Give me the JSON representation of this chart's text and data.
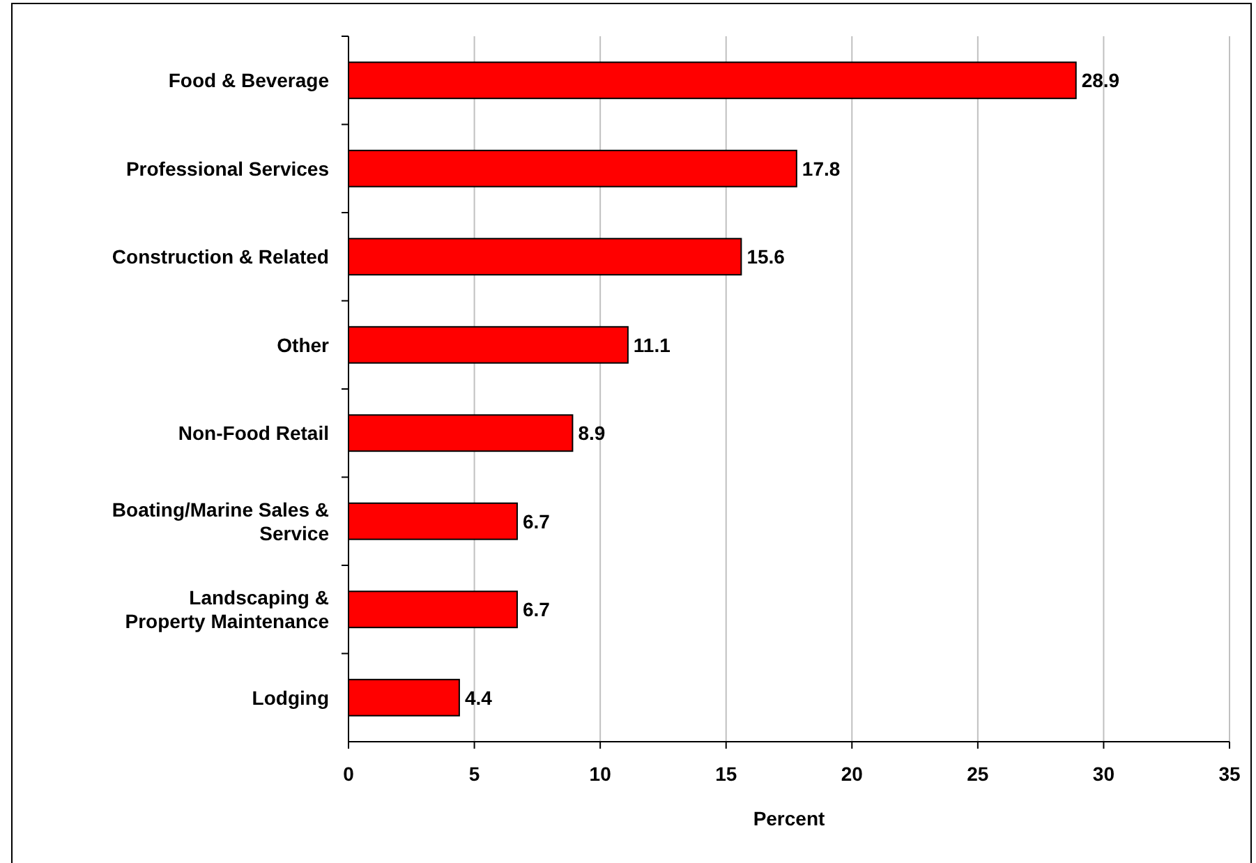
{
  "chart_data": {
    "type": "bar",
    "orientation": "horizontal",
    "xlabel": "Percent",
    "categories": [
      "Food & Beverage",
      "Professional Services",
      "Construction & Related",
      "Other",
      "Non-Food Retail",
      "Boating/Marine Sales &\nService",
      "Landscaping &\nProperty Maintenance",
      "Lodging"
    ],
    "values": [
      28.9,
      17.8,
      15.6,
      11.1,
      8.9,
      6.7,
      6.7,
      4.4
    ],
    "color": "#ff0000",
    "xlim": [
      0,
      35
    ],
    "xticks": [
      0,
      5,
      10,
      15,
      20,
      25,
      30,
      35
    ],
    "grid": "x",
    "data_labels": true
  }
}
